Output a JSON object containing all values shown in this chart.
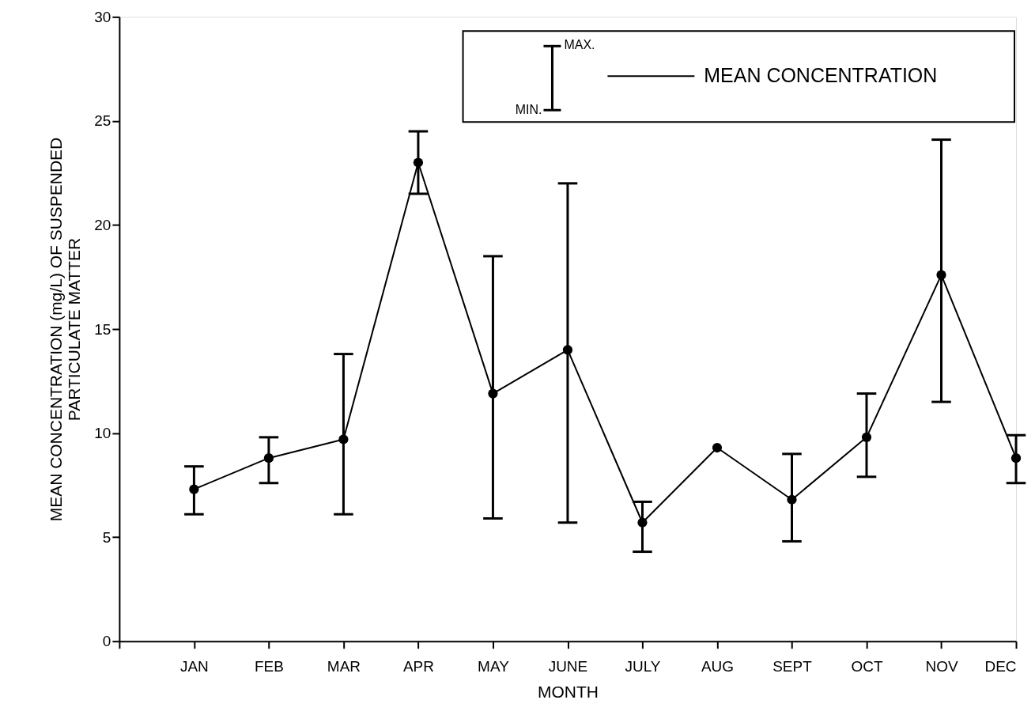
{
  "chart_data": {
    "type": "line",
    "xlabel": "MONTH",
    "ylabel": "MEAN CONCENTRATION (mg/L) OF SUSPENDED\nPARTICULATE MATTER",
    "categories": [
      "JAN",
      "FEB",
      "MAR",
      "APR",
      "MAY",
      "JUNE",
      "JULY",
      "AUG",
      "SEPT",
      "OCT",
      "NOV",
      "DEC"
    ],
    "series": [
      {
        "name": "MEAN CONCENTRATION",
        "color": "#000000",
        "values": [
          7.3,
          8.8,
          9.7,
          23.0,
          11.9,
          14.0,
          5.7,
          9.3,
          6.8,
          9.8,
          17.6,
          8.8
        ],
        "errors": [
          [
            6.1,
            8.4
          ],
          [
            7.6,
            9.8
          ],
          [
            6.1,
            13.8
          ],
          [
            21.5,
            24.5
          ],
          [
            5.9,
            18.5
          ],
          [
            5.7,
            22.0
          ],
          [
            4.3,
            6.7
          ],
          null,
          [
            4.8,
            9.0
          ],
          [
            7.9,
            11.9
          ],
          [
            11.5,
            24.1
          ],
          [
            7.6,
            9.9
          ]
        ]
      }
    ],
    "annotations": [
      "MAX.",
      "MIN."
    ],
    "ylim": [
      0,
      30
    ],
    "yticks": [
      0,
      5,
      10,
      15,
      20,
      25,
      30
    ],
    "grid": false,
    "legend": "top right",
    "marker": "circle",
    "line_style": "solid"
  }
}
